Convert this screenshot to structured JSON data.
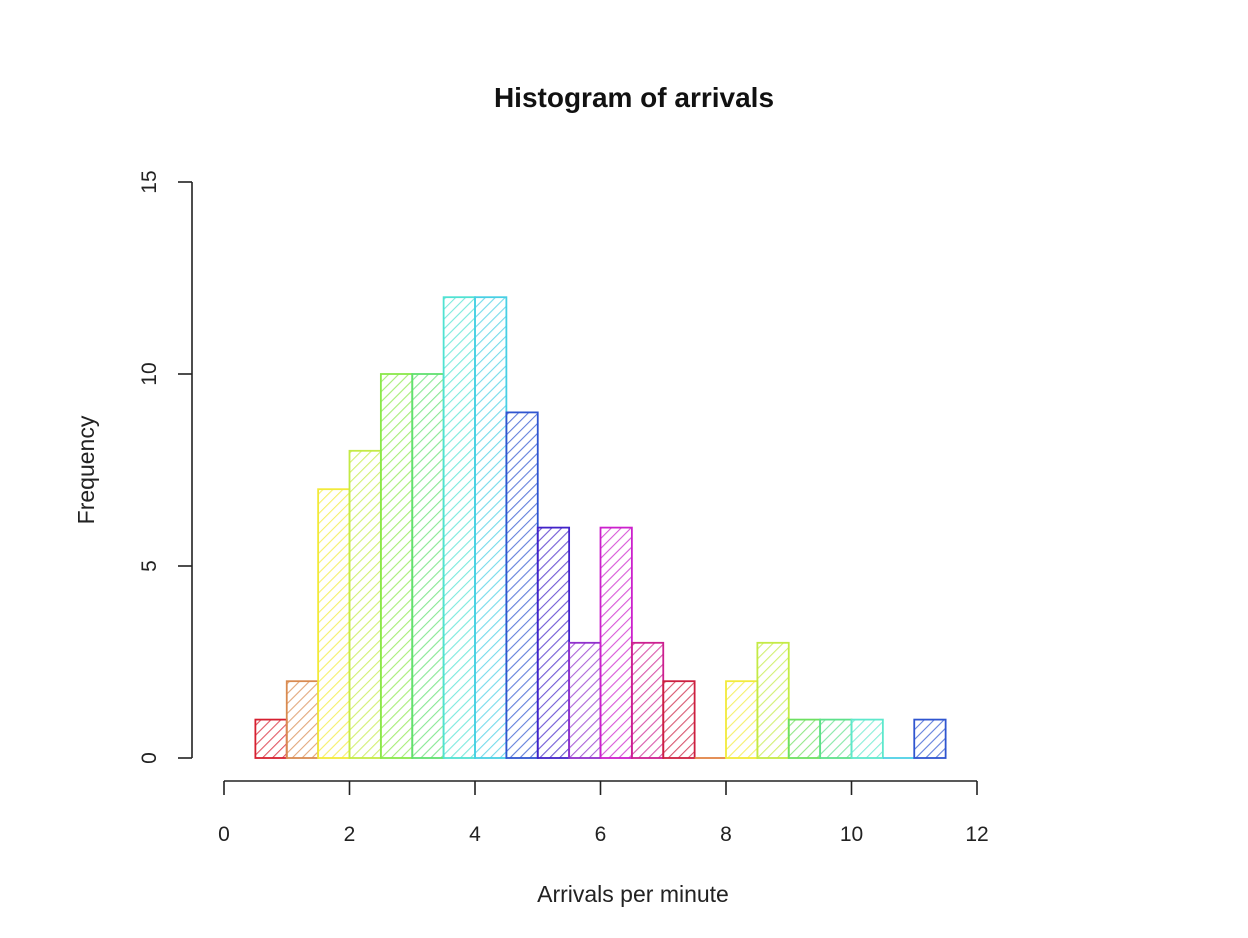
{
  "chart_data": {
    "type": "bar",
    "title": "Histogram of arrivals",
    "xlabel": "Arrivals per minute",
    "ylabel": "Frequency",
    "xlim": [
      0,
      12
    ],
    "ylim": [
      0,
      15
    ],
    "x_ticks": [
      0,
      2,
      4,
      6,
      8,
      10,
      12
    ],
    "y_ticks": [
      0,
      5,
      10,
      15
    ],
    "grid": false,
    "fill_pattern": "diagonal-hatch",
    "bins": [
      {
        "start": 0.5,
        "end": 1.0,
        "count": 1,
        "color": "#d62030"
      },
      {
        "start": 1.0,
        "end": 1.5,
        "count": 2,
        "color": "#d98a50"
      },
      {
        "start": 1.5,
        "end": 2.0,
        "count": 7,
        "color": "#f2ea3a"
      },
      {
        "start": 2.0,
        "end": 2.5,
        "count": 8,
        "color": "#c4ea45"
      },
      {
        "start": 2.5,
        "end": 3.0,
        "count": 10,
        "color": "#8ae84a"
      },
      {
        "start": 3.0,
        "end": 3.5,
        "count": 10,
        "color": "#60e070"
      },
      {
        "start": 3.5,
        "end": 4.0,
        "count": 12,
        "color": "#50e2d2"
      },
      {
        "start": 4.0,
        "end": 4.5,
        "count": 12,
        "color": "#48cfe4"
      },
      {
        "start": 4.5,
        "end": 5.0,
        "count": 9,
        "color": "#2f55d0"
      },
      {
        "start": 5.0,
        "end": 5.5,
        "count": 6,
        "color": "#4222c8"
      },
      {
        "start": 5.5,
        "end": 6.0,
        "count": 3,
        "color": "#9030cc"
      },
      {
        "start": 6.0,
        "end": 6.5,
        "count": 6,
        "color": "#cc20cc"
      },
      {
        "start": 6.5,
        "end": 7.0,
        "count": 3,
        "color": "#cc2090"
      },
      {
        "start": 7.0,
        "end": 7.5,
        "count": 2,
        "color": "#cc2040"
      },
      {
        "start": 7.5,
        "end": 8.0,
        "count": 0,
        "color": "#e08040"
      },
      {
        "start": 8.0,
        "end": 8.5,
        "count": 2,
        "color": "#f2ea3a"
      },
      {
        "start": 8.5,
        "end": 9.0,
        "count": 3,
        "color": "#c4ea45"
      },
      {
        "start": 9.0,
        "end": 9.5,
        "count": 1,
        "color": "#6ee060"
      },
      {
        "start": 9.5,
        "end": 10.0,
        "count": 1,
        "color": "#5ee08a"
      },
      {
        "start": 10.0,
        "end": 10.5,
        "count": 1,
        "color": "#5ee8cc"
      },
      {
        "start": 10.5,
        "end": 11.0,
        "count": 0,
        "color": "#48cfe4"
      },
      {
        "start": 11.0,
        "end": 11.5,
        "count": 1,
        "color": "#2f55d0"
      }
    ]
  }
}
